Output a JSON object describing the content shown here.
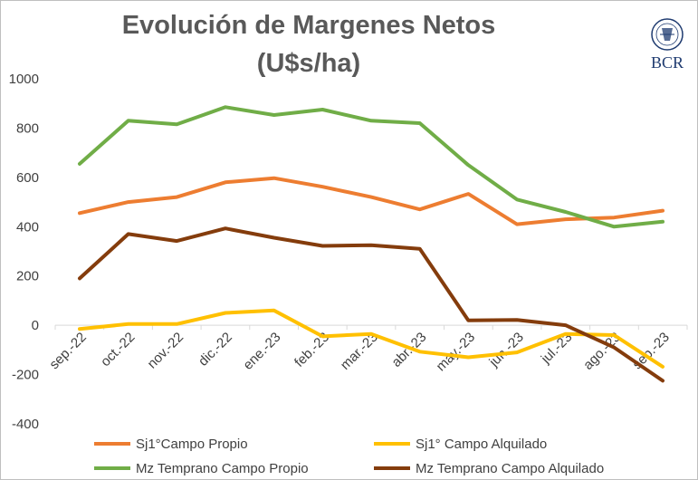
{
  "title_line1": "Evolución de Margenes Netos",
  "title_line2": "(U$s/ha)",
  "logo": {
    "text": "BCR",
    "seal_ring_text": "BOLSA DE COMERCIO DE ROSARIO",
    "color": "#1f3b70"
  },
  "chart_data": {
    "type": "line",
    "categories": [
      "sep.-22",
      "oct.-22",
      "nov.-22",
      "dic.-22",
      "ene.-23",
      "feb.-23",
      "mar.-23",
      "abr.-23",
      "may.-23",
      "jun.-23",
      "jul.-23",
      "ago.-23",
      "sep.-23"
    ],
    "ylim": [
      -400,
      1000
    ],
    "yticks": [
      -400,
      -200,
      0,
      200,
      400,
      600,
      800,
      1000
    ],
    "grid": false,
    "legend_position": "bottom",
    "series": [
      {
        "name": "Sj1°Campo Propio",
        "color": "#ed7d31",
        "values": [
          455,
          500,
          520,
          580,
          597,
          562,
          520,
          470,
          533,
          410,
          430,
          437,
          465
        ]
      },
      {
        "name": "Sj1° Campo Alquilado",
        "color": "#ffc000",
        "values": [
          -15,
          5,
          5,
          50,
          60,
          -45,
          -35,
          -107,
          -130,
          -110,
          -35,
          -40,
          -168
        ]
      },
      {
        "name": "Mz Temprano  Campo Propio",
        "color": "#70ad47",
        "values": [
          655,
          830,
          815,
          885,
          853,
          875,
          830,
          820,
          650,
          510,
          460,
          400,
          420
        ]
      },
      {
        "name": "Mz Temprano  Campo Alquilado",
        "color": "#843c0c",
        "values": [
          190,
          370,
          342,
          393,
          355,
          322,
          325,
          310,
          20,
          22,
          0,
          -90,
          -225
        ]
      }
    ]
  }
}
